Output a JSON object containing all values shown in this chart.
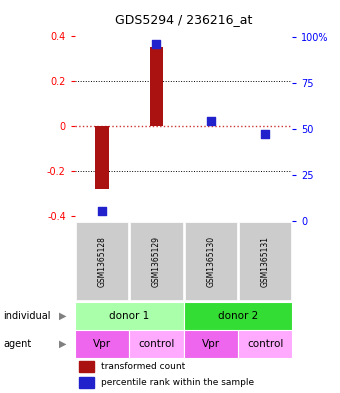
{
  "title": "GDS5294 / 236216_at",
  "samples": [
    "GSM1365128",
    "GSM1365129",
    "GSM1365130",
    "GSM1365131"
  ],
  "bar_values": [
    -0.28,
    0.355,
    0.003,
    0.0
  ],
  "percentile_values": [
    3,
    96,
    53,
    46
  ],
  "ylim_left": [
    -0.42,
    0.44
  ],
  "ylim_right": [
    0,
    105
  ],
  "left_ticks": [
    -0.4,
    -0.2,
    0,
    0.2,
    0.4
  ],
  "left_tick_labels": [
    "-0.4",
    "-0.2",
    "0",
    "0.2",
    "0.4"
  ],
  "right_ticks": [
    0,
    25,
    50,
    75,
    100
  ],
  "right_tick_labels": [
    "0",
    "25",
    "50",
    "75",
    "100%"
  ],
  "bar_color": "#aa1111",
  "dot_color": "#2222cc",
  "zero_line_color": "#cc3333",
  "grid_color": "#333333",
  "donor_row": [
    {
      "label": "donor 1",
      "span": [
        0,
        2
      ],
      "color": "#aaffaa"
    },
    {
      "label": "donor 2",
      "span": [
        2,
        4
      ],
      "color": "#33dd33"
    }
  ],
  "agent_row": [
    {
      "label": "Vpr",
      "span": [
        0,
        1
      ],
      "color": "#ee66ee"
    },
    {
      "label": "control",
      "span": [
        1,
        2
      ],
      "color": "#ffaaff"
    },
    {
      "label": "Vpr",
      "span": [
        2,
        3
      ],
      "color": "#ee66ee"
    },
    {
      "label": "control",
      "span": [
        3,
        4
      ],
      "color": "#ffaaff"
    }
  ],
  "gsm_bg_color": "#cccccc",
  "legend_red_label": "transformed count",
  "legend_blue_label": "percentile rank within the sample",
  "individual_label": "individual",
  "agent_label": "agent",
  "bar_width": 0.25
}
